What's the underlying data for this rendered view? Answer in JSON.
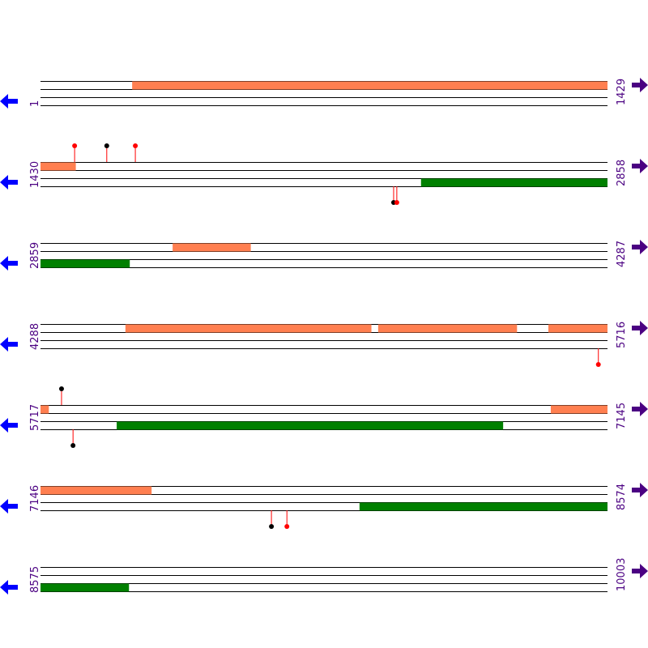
{
  "rows": [
    {
      "start": 1,
      "end": 1429,
      "start_label": "1",
      "end_label": "1429",
      "features": [
        {
          "track": 0,
          "color": "#ff7f50",
          "start": 232,
          "end": 1429
        }
      ],
      "markers": []
    },
    {
      "start": 1430,
      "end": 2858,
      "start_label": "1430",
      "end_label": "2858",
      "features": [
        {
          "track": 0,
          "color": "#ff7f50",
          "start": 1430,
          "end": 1518
        },
        {
          "track": 2,
          "color": "#008000",
          "start": 2389,
          "end": 2858
        }
      ],
      "markers": [
        {
          "pos": 1516,
          "side": "above",
          "color": "#ff0000"
        },
        {
          "pos": 1597,
          "side": "above",
          "color": "#000000"
        },
        {
          "pos": 1669,
          "side": "above",
          "color": "#ff0000"
        },
        {
          "pos": 2320,
          "side": "below",
          "color": "#000000"
        },
        {
          "pos": 2328,
          "side": "below",
          "color": "#ff0000"
        }
      ]
    },
    {
      "start": 2859,
      "end": 4287,
      "start_label": "2859",
      "end_label": "4287",
      "features": [
        {
          "track": 0,
          "color": "#ff7f50",
          "start": 3192,
          "end": 3388
        },
        {
          "track": 2,
          "color": "#008000",
          "start": 2859,
          "end": 3083
        }
      ],
      "markers": []
    },
    {
      "start": 4288,
      "end": 5716,
      "start_label": "4288",
      "end_label": "5716",
      "features": [
        {
          "track": 0,
          "color": "#ff7f50",
          "start": 4502,
          "end": 5121
        },
        {
          "track": 0,
          "color": "#ff7f50",
          "start": 5139,
          "end": 5488
        },
        {
          "track": 0,
          "color": "#ff7f50",
          "start": 5568,
          "end": 5716
        }
      ],
      "markers": [
        {
          "pos": 5694,
          "side": "below",
          "color": "#ff0000"
        }
      ]
    },
    {
      "start": 5717,
      "end": 7145,
      "start_label": "5717",
      "end_label": "7145",
      "features": [
        {
          "track": 0,
          "color": "#ff7f50",
          "start": 5717,
          "end": 5737
        },
        {
          "track": 0,
          "color": "#ff7f50",
          "start": 7003,
          "end": 7145
        },
        {
          "track": 2,
          "color": "#008000",
          "start": 5909,
          "end": 6882
        }
      ],
      "markers": [
        {
          "pos": 5770,
          "side": "above",
          "color": "#000000"
        },
        {
          "pos": 5799,
          "side": "below",
          "color": "#000000"
        }
      ]
    },
    {
      "start": 7146,
      "end": 8574,
      "start_label": "7146",
      "end_label": "8574",
      "features": [
        {
          "track": 0,
          "color": "#ff7f50",
          "start": 7146,
          "end": 7425
        },
        {
          "track": 2,
          "color": "#008000",
          "start": 7950,
          "end": 8574
        }
      ],
      "markers": [
        {
          "pos": 7728,
          "side": "below",
          "color": "#000000"
        },
        {
          "pos": 7767,
          "side": "below",
          "color": "#ff0000"
        }
      ]
    },
    {
      "start": 8575,
      "end": 10003,
      "start_label": "8575",
      "end_label": "10003",
      "features": [
        {
          "track": 2,
          "color": "#008000",
          "start": 8575,
          "end": 8797
        }
      ],
      "markers": []
    }
  ]
}
